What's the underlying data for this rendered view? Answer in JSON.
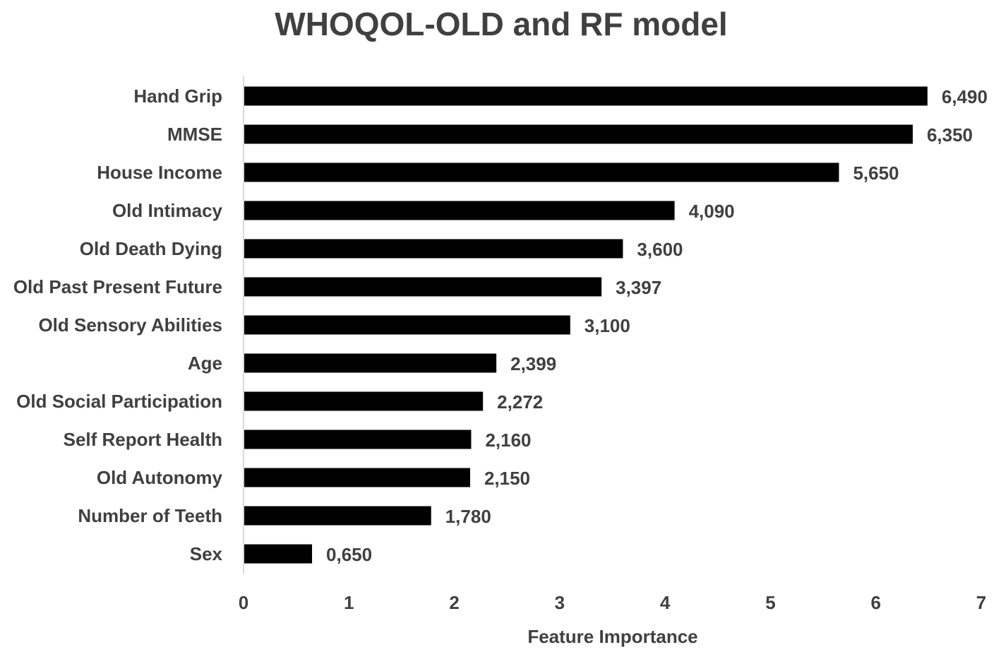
{
  "chart_data": {
    "type": "bar",
    "orientation": "horizontal",
    "title": "WHOQOL-OLD and RF model",
    "xlabel": "Feature Importance",
    "ylabel": "",
    "xlim": [
      0,
      7
    ],
    "x_ticks": [
      "0",
      "1",
      "2",
      "3",
      "4",
      "5",
      "6",
      "7"
    ],
    "grid": false,
    "bar_color": "#000000",
    "text_color": "#404040",
    "axis_color": "#d9d9d9",
    "categories": [
      "Hand Grip",
      "MMSE",
      "House Income",
      "Old Intimacy",
      "Old Death Dying",
      "Old Past Present Future",
      "Old Sensory Abilities",
      "Age",
      "Old Social Participation",
      "Self Report Health",
      "Old Autonomy",
      "Number of Teeth",
      "Sex"
    ],
    "values": [
      6.49,
      6.35,
      5.65,
      4.09,
      3.6,
      3.397,
      3.1,
      2.399,
      2.272,
      2.16,
      2.15,
      1.78,
      0.65
    ],
    "value_labels": [
      "6,490",
      "6,350",
      "5,650",
      "4,090",
      "3,600",
      "3,397",
      "3,100",
      "2,399",
      "2,272",
      "2,160",
      "2,150",
      "1,780",
      "0,650"
    ]
  }
}
